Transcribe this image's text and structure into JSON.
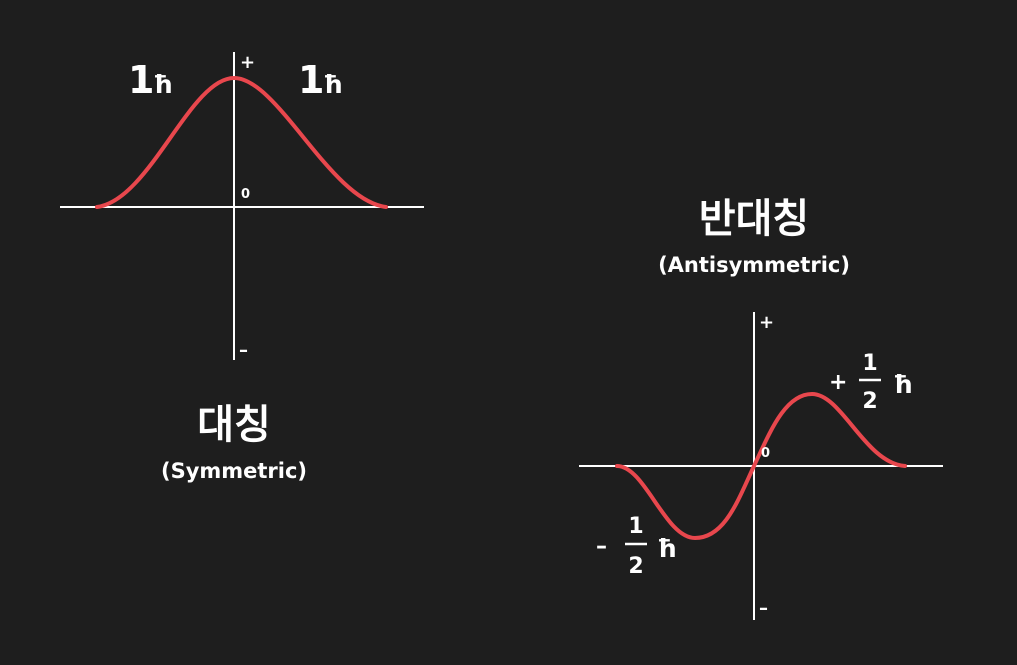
{
  "symmetric": {
    "title_ko": "대칭",
    "title_en": "(Symmetric)",
    "axis_plus": "+",
    "axis_minus": "–",
    "origin": "0",
    "left_label": {
      "num": "1",
      "unit": "ħ"
    },
    "right_label": {
      "num": "1",
      "unit": "ħ"
    }
  },
  "antisymmetric": {
    "title_ko": "반대칭",
    "title_en": "(Antisymmetric)",
    "axis_plus": "+",
    "axis_minus": "–",
    "origin": "0",
    "peak_label": {
      "sign": "+",
      "numerator": "1",
      "denominator": "2",
      "unit": "ħ"
    },
    "trough_label": {
      "sign": "–",
      "numerator": "1",
      "denominator": "2",
      "unit": "ħ"
    }
  },
  "colors": {
    "background": "#1e1e1e",
    "curve": "#e8474d",
    "axes": "#ffffff"
  }
}
